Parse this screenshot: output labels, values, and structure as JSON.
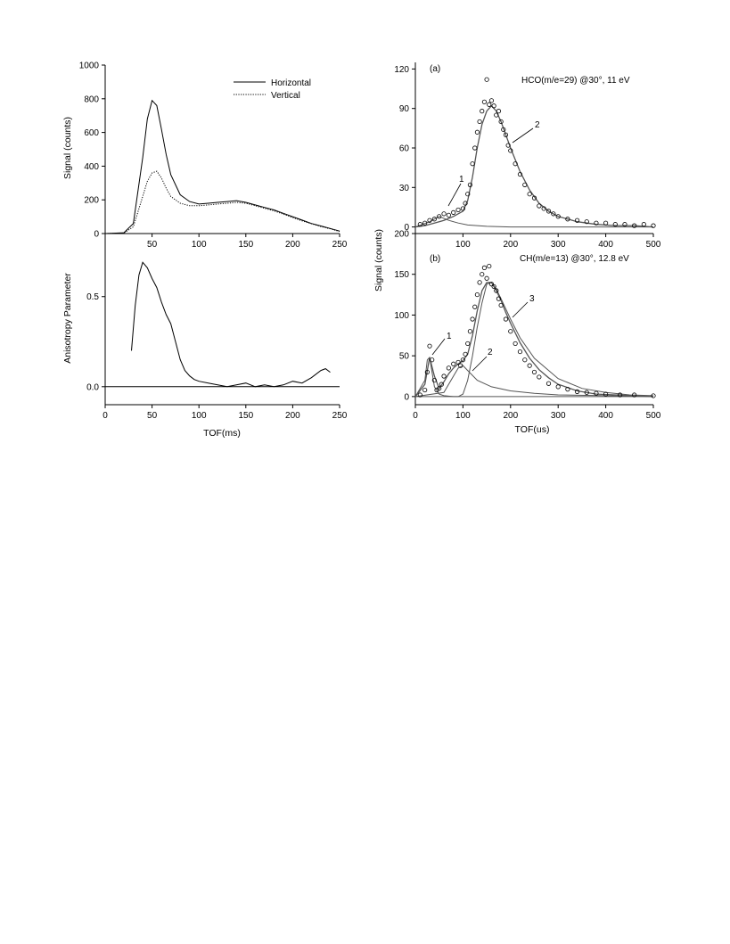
{
  "chart_data": [
    {
      "id": "left-top",
      "type": "line",
      "title": "",
      "xlabel": "",
      "ylabel": "Signal (counts)",
      "xlim": [
        0,
        250
      ],
      "ylim": [
        0,
        1000
      ],
      "xticks": [
        "",
        "50",
        "100",
        "150",
        "200",
        "250"
      ],
      "xtick_values": [
        0,
        50,
        100,
        150,
        200,
        250
      ],
      "yticks": [
        "0",
        "200",
        "400",
        "600",
        "800",
        "1000"
      ],
      "ytick_values": [
        0,
        200,
        400,
        600,
        800,
        1000
      ],
      "legend": {
        "placement": "top-right",
        "entries": [
          "Horizontal",
          "Vertical"
        ]
      },
      "series": [
        {
          "name": "Horizontal",
          "style": "solid",
          "x": [
            0,
            20,
            30,
            40,
            45,
            50,
            55,
            60,
            65,
            70,
            80,
            90,
            100,
            110,
            120,
            130,
            140,
            150,
            160,
            170,
            180,
            190,
            200,
            210,
            220,
            230,
            240,
            250
          ],
          "y": [
            0,
            5,
            60,
            450,
            680,
            790,
            760,
            620,
            470,
            350,
            230,
            190,
            175,
            180,
            185,
            190,
            195,
            185,
            170,
            155,
            140,
            120,
            100,
            80,
            60,
            45,
            30,
            15
          ]
        },
        {
          "name": "Vertical",
          "style": "dotted",
          "x": [
            0,
            20,
            30,
            40,
            45,
            50,
            55,
            60,
            65,
            70,
            80,
            90,
            100,
            110,
            120,
            130,
            140,
            150,
            160,
            170,
            180,
            190,
            200,
            210,
            220,
            230,
            240,
            250
          ],
          "y": [
            0,
            3,
            40,
            220,
            310,
            360,
            370,
            330,
            270,
            220,
            180,
            165,
            165,
            170,
            175,
            180,
            185,
            180,
            165,
            150,
            135,
            115,
            95,
            75,
            58,
            42,
            28,
            12
          ]
        }
      ]
    },
    {
      "id": "left-bottom",
      "type": "line",
      "title": "",
      "xlabel": "TOF(ms)",
      "ylabel": "Anisotropy Parameter",
      "xlim": [
        0,
        250
      ],
      "ylim": [
        -0.1,
        0.85
      ],
      "xticks": [
        "0",
        "50",
        "100",
        "150",
        "200",
        "250"
      ],
      "xtick_values": [
        0,
        50,
        100,
        150,
        200,
        250
      ],
      "yticks": [
        "0.0",
        "0.5"
      ],
      "ytick_values": [
        0,
        0.5
      ],
      "series": [
        {
          "name": "",
          "style": "solid",
          "x": [
            28,
            32,
            36,
            40,
            45,
            50,
            55,
            60,
            65,
            70,
            75,
            80,
            85,
            90,
            95,
            100,
            110,
            120,
            130,
            140,
            150,
            160,
            170,
            180,
            190,
            200,
            210,
            220,
            230,
            235,
            240
          ],
          "y": [
            0.2,
            0.45,
            0.62,
            0.69,
            0.66,
            0.6,
            0.55,
            0.47,
            0.4,
            0.35,
            0.25,
            0.15,
            0.09,
            0.06,
            0.04,
            0.03,
            0.02,
            0.01,
            0.0,
            0.01,
            0.02,
            0.0,
            0.01,
            0.0,
            0.01,
            0.03,
            0.02,
            0.05,
            0.09,
            0.1,
            0.08
          ]
        },
        {
          "name": "",
          "style": "solid",
          "x": [
            0,
            250
          ],
          "y": [
            0,
            0
          ]
        }
      ]
    },
    {
      "id": "right-a",
      "type": "scatter",
      "title": "HCO(m/e=29) @30°, 11 eV",
      "panel_label": "(a)",
      "xlabel": "",
      "ylabel": "",
      "xlim": [
        0,
        500
      ],
      "ylim": [
        -5,
        125
      ],
      "xticks": [
        "100",
        "200",
        "300",
        "400",
        "500"
      ],
      "xtick_values": [
        100,
        200,
        300,
        400,
        500
      ],
      "yticks": [
        "0",
        "30",
        "60",
        "90",
        "120"
      ],
      "ytick_values": [
        0,
        30,
        60,
        90,
        120
      ],
      "annotations": [
        "1",
        "2"
      ],
      "points": {
        "x": [
          10,
          20,
          30,
          40,
          50,
          60,
          70,
          80,
          90,
          100,
          105,
          110,
          115,
          120,
          125,
          130,
          135,
          140,
          145,
          150,
          155,
          160,
          165,
          170,
          175,
          180,
          185,
          190,
          195,
          200,
          210,
          220,
          230,
          240,
          250,
          260,
          270,
          280,
          290,
          300,
          320,
          340,
          360,
          380,
          400,
          420,
          440,
          460,
          480,
          500
        ],
        "y": [
          2,
          3,
          5,
          6,
          8,
          10,
          9,
          11,
          13,
          14,
          18,
          25,
          32,
          48,
          60,
          72,
          80,
          88,
          95,
          112,
          93,
          96,
          92,
          85,
          88,
          80,
          74,
          70,
          62,
          58,
          48,
          40,
          32,
          25,
          22,
          16,
          14,
          12,
          10,
          8,
          6,
          5,
          4,
          3,
          3,
          2,
          2,
          1,
          2,
          1
        ]
      },
      "series": [
        {
          "name": "",
          "x": [
            0,
            20,
            40,
            60,
            80,
            100,
            110,
            120,
            130,
            140,
            150,
            160,
            170,
            180,
            190,
            200,
            220,
            240,
            260,
            280,
            300,
            340,
            380,
            420,
            460,
            500
          ],
          "y": [
            0,
            1,
            3,
            5,
            8,
            12,
            20,
            38,
            60,
            78,
            88,
            92,
            88,
            80,
            70,
            60,
            42,
            28,
            18,
            12,
            8,
            4,
            2,
            1,
            1,
            0
          ]
        },
        {
          "name": "",
          "x": [
            0,
            30,
            50,
            70,
            90,
            110,
            150,
            200,
            300,
            400,
            500
          ],
          "y": [
            0,
            4,
            8,
            5,
            3,
            1.5,
            0.5,
            0,
            0,
            0,
            0
          ]
        }
      ]
    },
    {
      "id": "right-b",
      "type": "scatter",
      "title": "CH(m/e=13) @30°, 12.8 eV",
      "panel_label": "(b)",
      "xlabel": "TOF(us)",
      "ylabel": "Signal (counts)",
      "xlim": [
        0,
        500
      ],
      "ylim": [
        -10,
        200
      ],
      "xticks": [
        "0",
        "100",
        "200",
        "300",
        "400",
        "500"
      ],
      "xtick_values": [
        0,
        100,
        200,
        300,
        400,
        500
      ],
      "yticks": [
        "0",
        "50",
        "100",
        "150",
        "200"
      ],
      "ytick_values": [
        0,
        50,
        100,
        150,
        200
      ],
      "annotations": [
        "1",
        "2",
        "3"
      ],
      "points": {
        "x": [
          10,
          20,
          25,
          30,
          35,
          40,
          45,
          50,
          55,
          60,
          70,
          80,
          90,
          95,
          100,
          105,
          110,
          115,
          120,
          125,
          130,
          135,
          140,
          145,
          150,
          155,
          160,
          165,
          170,
          175,
          180,
          190,
          200,
          210,
          220,
          230,
          240,
          250,
          260,
          280,
          300,
          320,
          340,
          360,
          380,
          400,
          430,
          460,
          500
        ],
        "y": [
          2,
          8,
          30,
          62,
          45,
          20,
          8,
          10,
          15,
          25,
          35,
          40,
          42,
          38,
          45,
          52,
          65,
          80,
          95,
          110,
          125,
          140,
          150,
          158,
          145,
          160,
          138,
          135,
          130,
          120,
          112,
          95,
          80,
          65,
          55,
          45,
          38,
          30,
          24,
          16,
          12,
          9,
          6,
          5,
          4,
          3,
          2,
          2,
          1
        ]
      },
      "series": [
        {
          "name": "",
          "x": [
            0,
            20,
            30,
            40,
            50,
            60,
            70,
            80,
            90,
            100,
            110,
            120,
            130,
            140,
            150,
            160,
            170,
            180,
            190,
            200,
            220,
            240,
            260,
            280,
            300,
            340,
            380,
            420,
            460,
            500
          ],
          "y": [
            0,
            15,
            48,
            25,
            10,
            18,
            28,
            35,
            40,
            44,
            52,
            75,
            105,
            130,
            140,
            140,
            130,
            118,
            103,
            90,
            66,
            47,
            33,
            23,
            15,
            7,
            3,
            2,
            1,
            0
          ]
        },
        {
          "name": "",
          "x": [
            0,
            20,
            25,
            30,
            35,
            40,
            50,
            60,
            80,
            120,
            200,
            300,
            500
          ],
          "y": [
            0,
            20,
            45,
            48,
            30,
            12,
            3,
            1,
            0,
            0,
            0,
            0,
            0
          ]
        },
        {
          "name": "",
          "x": [
            0,
            60,
            80,
            90,
            100,
            110,
            130,
            160,
            200,
            250,
            300,
            400,
            500
          ],
          "y": [
            0,
            5,
            25,
            35,
            38,
            32,
            20,
            12,
            7,
            4,
            2,
            1,
            0
          ]
        },
        {
          "name": "",
          "x": [
            0,
            90,
            100,
            110,
            120,
            130,
            140,
            150,
            160,
            170,
            180,
            200,
            220,
            250,
            300,
            350,
            400,
            450,
            500
          ],
          "y": [
            0,
            0,
            3,
            20,
            50,
            85,
            115,
            138,
            140,
            132,
            120,
            95,
            72,
            47,
            22,
            10,
            5,
            2,
            1
          ]
        }
      ]
    }
  ]
}
